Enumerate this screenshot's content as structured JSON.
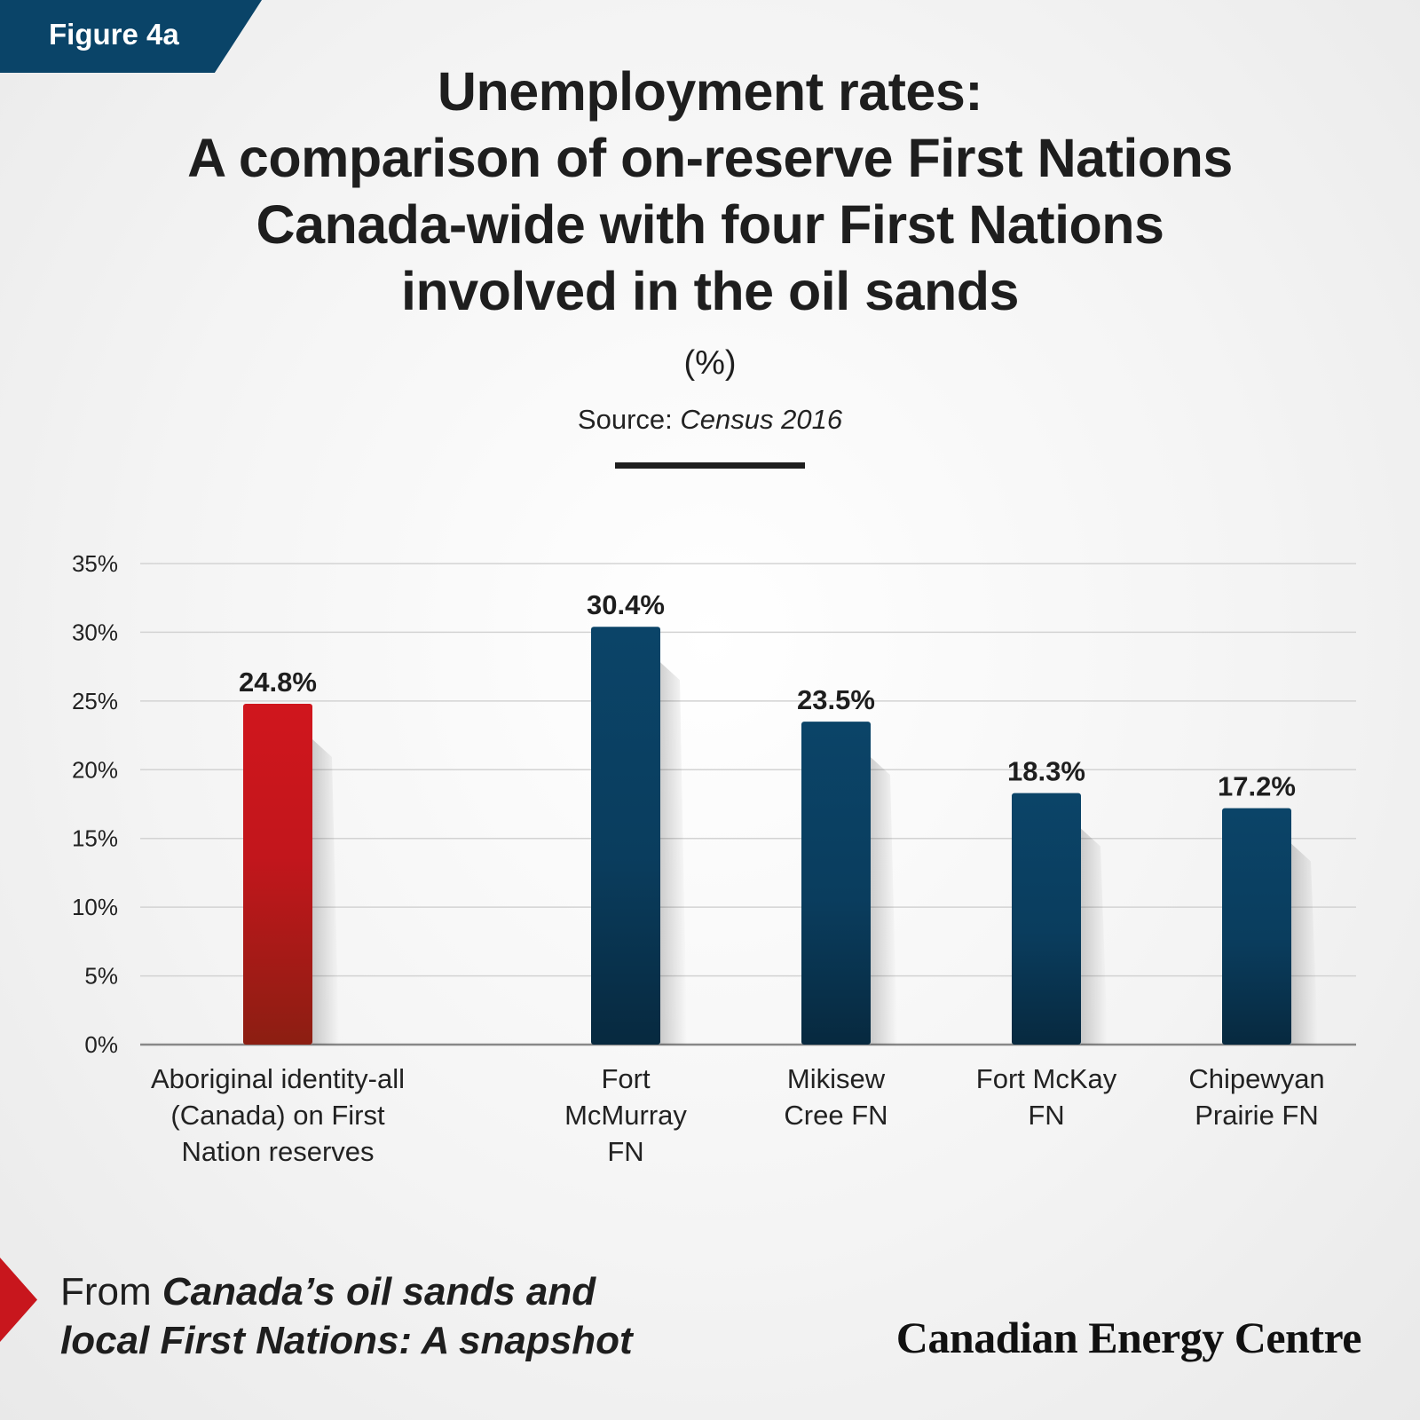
{
  "figure_label": "Figure 4a",
  "title_lines": [
    "Unemployment rates:",
    "A comparison of on-reserve First Nations",
    "Canada-wide with four First Nations",
    "involved in the oil sands"
  ],
  "unit": "(%)",
  "source_prefix": "Source:",
  "source_name": "Census 2016",
  "footer": {
    "lead": "From ",
    "book_line1": "Canada’s oil sands and",
    "book_line2": "local First Nations: A snapshot"
  },
  "brand": "Canadian Energy Centre",
  "colors": {
    "red_bar": "#c8161d",
    "blue_bar": "#0a4468",
    "accent_tag": "#0a4468"
  },
  "chart_data": {
    "type": "bar",
    "categories": [
      [
        "Aboriginal identity-all",
        "(Canada) on First",
        "Nation reserves"
      ],
      [
        "Fort",
        "McMurray",
        "FN"
      ],
      [
        "Mikisew",
        "Cree FN"
      ],
      [
        "Fort McKay",
        "FN"
      ],
      [
        "Chipewyan",
        "Prairie FN"
      ]
    ],
    "values": [
      24.8,
      30.4,
      23.5,
      18.3,
      17.2
    ],
    "value_labels": [
      "24.8%",
      "30.4%",
      "23.5%",
      "18.3%",
      "17.2%"
    ],
    "bar_colors": [
      "#c8161d",
      "#0a4468",
      "#0a4468",
      "#0a4468",
      "#0a4468"
    ],
    "ylim": [
      0,
      35
    ],
    "yticks": [
      0,
      5,
      10,
      15,
      20,
      25,
      30,
      35
    ],
    "ytick_labels": [
      "0%",
      "5%",
      "10%",
      "15%",
      "20%",
      "25%",
      "30%",
      "35%"
    ],
    "grid": true,
    "xlabel": "",
    "ylabel": ""
  }
}
